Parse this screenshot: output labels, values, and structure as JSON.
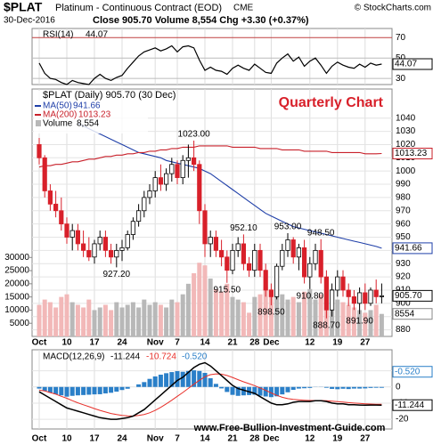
{
  "chart_data": [
    {
      "type": "line",
      "series": [
        {
          "name": "RSI(14)",
          "color": "#000000",
          "values": [
            45,
            35,
            30,
            29,
            26,
            24,
            28,
            26,
            25,
            24,
            30,
            34,
            30,
            28,
            31,
            33,
            40,
            46,
            52,
            56,
            58,
            60,
            57,
            59,
            62,
            56,
            61,
            62,
            60,
            48,
            38,
            41,
            38,
            37,
            34,
            40,
            43,
            40,
            38,
            44,
            40,
            36,
            35,
            45,
            50,
            54,
            47,
            51,
            42,
            47,
            50,
            43,
            35,
            42,
            46,
            43,
            41,
            40,
            44,
            41,
            45,
            43,
            44.07
          ]
        }
      ],
      "ylim": [
        24,
        79
      ],
      "yticks": [
        30,
        50,
        70
      ],
      "grid": true
    },
    {
      "type": "candlestick",
      "title": "$PLAT",
      "subtitle": "Platinum - Continuous Contract (EOD)",
      "exchange": "CME",
      "source": "© StockCharts.com",
      "date": "30-Dec-2016",
      "quote": "Close 905.70 Volume 8,554 Chg +3.30 (+0.37%)",
      "annotation": "Quarterly Chart",
      "watermark": "www.Free-Bullion-Investment-Guide.com",
      "categories": [
        "Oct",
        null,
        null,
        null,
        null,
        "10",
        null,
        null,
        null,
        null,
        "17",
        null,
        null,
        null,
        null,
        "24",
        null,
        null,
        null,
        null,
        null,
        "Nov",
        null,
        null,
        null,
        "7",
        null,
        null,
        null,
        null,
        "14",
        null,
        null,
        null,
        null,
        "21",
        null,
        null,
        null,
        "28",
        null,
        null,
        "Dec",
        null,
        null,
        null,
        null,
        null,
        null,
        "12",
        null,
        null,
        null,
        null,
        "19",
        null,
        null,
        null,
        null,
        "27",
        null,
        null,
        null
      ],
      "price": {
        "name": "$PLAT (Daily) 905.70 (30 Dec)",
        "last_label": "905.70",
        "up_color": "#000000",
        "down_color": "#d8202a",
        "ohlc": [
          [
            1020,
            1025,
            1005,
            1010
          ],
          [
            1010,
            1012,
            980,
            985
          ],
          [
            985,
            990,
            970,
            975
          ],
          [
            975,
            985,
            965,
            970
          ],
          [
            970,
            980,
            955,
            960
          ],
          [
            960,
            965,
            945,
            950
          ],
          [
            950,
            960,
            940,
            955
          ],
          [
            955,
            960,
            940,
            945
          ],
          [
            945,
            955,
            935,
            940
          ],
          [
            940,
            950,
            932,
            935
          ],
          [
            935,
            948,
            930,
            945
          ],
          [
            945,
            955,
            940,
            950
          ],
          [
            950,
            955,
            935,
            940
          ],
          [
            940,
            945,
            930,
            935
          ],
          [
            935,
            945,
            927.2,
            940
          ],
          [
            940,
            948,
            932,
            942
          ],
          [
            942,
            955,
            940,
            952
          ],
          [
            952,
            965,
            948,
            962
          ],
          [
            962,
            975,
            958,
            970
          ],
          [
            970,
            985,
            965,
            980
          ],
          [
            980,
            990,
            975,
            985
          ],
          [
            985,
            1000,
            980,
            995
          ],
          [
            995,
            1005,
            985,
            990
          ],
          [
            990,
            1002,
            985,
            998
          ],
          [
            998,
            1010,
            992,
            1005
          ],
          [
            1005,
            1008,
            990,
            995
          ],
          [
            995,
            1012,
            990,
            1008
          ],
          [
            1008,
            1020,
            995,
            1010
          ],
          [
            1010,
            1023,
            1000,
            1005
          ],
          [
            1005,
            1008,
            960,
            970
          ],
          [
            970,
            975,
            935,
            945
          ],
          [
            945,
            955,
            935,
            950
          ],
          [
            950,
            955,
            935,
            940
          ],
          [
            940,
            948,
            928,
            935
          ],
          [
            935,
            940,
            915.5,
            925
          ],
          [
            925,
            945,
            922,
            940
          ],
          [
            940,
            950,
            935,
            945
          ],
          [
            945,
            952.1,
            925,
            930
          ],
          [
            930,
            935,
            920,
            925
          ],
          [
            925,
            945,
            920,
            940
          ],
          [
            940,
            945,
            920,
            925
          ],
          [
            925,
            930,
            905,
            910
          ],
          [
            910,
            915,
            898.5,
            905
          ],
          [
            905,
            930,
            903,
            928
          ],
          [
            928,
            945,
            925,
            940
          ],
          [
            940,
            953,
            935,
            948
          ],
          [
            948,
            950,
            930,
            935
          ],
          [
            935,
            945,
            925,
            942
          ],
          [
            942,
            948,
            915,
            920
          ],
          [
            920,
            935,
            910.8,
            930
          ],
          [
            930,
            945,
            925,
            940
          ],
          [
            940,
            948.5,
            915,
            920
          ],
          [
            920,
            925,
            888.7,
            895
          ],
          [
            895,
            915,
            890,
            910
          ],
          [
            910,
            925,
            905,
            920
          ],
          [
            920,
            925,
            905,
            910
          ],
          [
            910,
            915,
            898,
            905
          ],
          [
            905,
            910,
            895,
            900
          ],
          [
            900,
            912,
            891.9,
            908
          ],
          [
            908,
            915,
            895,
            900
          ],
          [
            900,
            912,
            898,
            910
          ],
          [
            910,
            918,
            900,
            905
          ],
          [
            905,
            915,
            900,
            905.7
          ]
        ]
      },
      "series": [
        {
          "name": "MA(50)",
          "color": "#1f3fa8",
          "values": [
            null,
            null,
            null,
            null,
            null,
            null,
            null,
            1036,
            1034,
            1032,
            1030,
            1028,
            1026,
            1024,
            1022,
            1020,
            1018,
            1016,
            1014,
            1013,
            1012,
            1011,
            1010,
            1008,
            1007,
            1006,
            1005,
            1004,
            1003,
            1002,
            1000,
            998,
            995,
            992,
            989,
            986,
            983,
            980,
            977,
            974,
            971,
            968,
            966,
            964,
            962,
            960,
            958,
            957,
            956,
            955,
            954,
            953,
            952,
            951,
            950,
            949,
            948,
            947,
            946,
            945,
            944,
            943,
            941.66
          ]
        },
        {
          "name": "MA(200)",
          "color": "#c8202a",
          "values": [
            1003,
            1004,
            1004,
            1005,
            1005,
            1006,
            1007,
            1007,
            1008,
            1009,
            1009,
            1010,
            1011,
            1011,
            1012,
            1012,
            1013,
            1013,
            1014,
            1014,
            1015,
            1015,
            1016,
            1016,
            1017,
            1017,
            1018,
            1018,
            1018,
            1019,
            1019,
            1019,
            1019,
            1019,
            1019,
            1018,
            1018,
            1018,
            1018,
            1018,
            1017,
            1017,
            1017,
            1017,
            1016,
            1016,
            1016,
            1016,
            1015,
            1015,
            1015,
            1015,
            1015,
            1014,
            1014,
            1014,
            1014,
            1014,
            1014,
            1013,
            1013,
            1013,
            1013.23
          ]
        }
      ],
      "volume": {
        "name": "Volume",
        "value_label": "8,554",
        "up_color": "#b8b8b8",
        "down_color": "#f2b8b8",
        "values": [
          12000,
          14000,
          13000,
          11000,
          15000,
          16000,
          13000,
          12000,
          11000,
          14000,
          10000,
          11000,
          12000,
          10000,
          13000,
          11000,
          12000,
          13000,
          11000,
          14000,
          12000,
          13000,
          12000,
          11000,
          14000,
          13000,
          16000,
          20000,
          24000,
          28000,
          27000,
          22000,
          18000,
          17000,
          20000,
          15000,
          14000,
          13000,
          9000,
          15000,
          16000,
          19000,
          18000,
          15000,
          16000,
          14000,
          15000,
          13000,
          17000,
          18000,
          14000,
          16000,
          22000,
          18000,
          14000,
          13000,
          12000,
          11000,
          10000,
          9000,
          10000,
          12000,
          8554
        ]
      },
      "annotations": [
        {
          "index": 28,
          "value": 1023,
          "label": "1023.00"
        },
        {
          "index": 37,
          "value": 952.1,
          "label": "952.10"
        },
        {
          "index": 45,
          "value": 953,
          "label": "953.00"
        },
        {
          "index": 51,
          "value": 948.5,
          "label": "948.50"
        },
        {
          "index": 14,
          "value": 927.2,
          "label": "927.20"
        },
        {
          "index": 34,
          "value": 915.5,
          "label": "915.50"
        },
        {
          "index": 42,
          "value": 898.5,
          "label": "898.50"
        },
        {
          "index": 49,
          "value": 910.8,
          "label": "910.80"
        },
        {
          "index": 52,
          "value": 888.7,
          "label": "888.70"
        },
        {
          "index": 58,
          "value": 891.9,
          "label": "891.90"
        }
      ],
      "ylim": [
        875,
        1062
      ],
      "yticks": [
        880,
        890,
        900,
        910,
        920,
        930,
        940,
        950,
        960,
        970,
        980,
        990,
        1000,
        1010,
        1020,
        1030,
        1040
      ],
      "y2lim": [
        0,
        94000
      ],
      "y2ticks": [
        5000,
        10000,
        15000,
        20000,
        25000,
        30000
      ],
      "grid": true
    },
    {
      "type": "macd",
      "title": "MACD(12,26,9)",
      "series": [
        {
          "name": "MACD",
          "color": "#000000",
          "values": [
            -3,
            -5,
            -7,
            -9,
            -11,
            -13,
            -14,
            -15,
            -16,
            -17,
            -18,
            -19,
            -19.5,
            -20,
            -20,
            -19.5,
            -19,
            -18,
            -16,
            -14,
            -11,
            -8,
            -5,
            -2,
            1,
            4,
            6,
            9,
            12,
            14,
            15,
            13,
            10,
            7,
            4,
            1,
            -1,
            -2,
            -3,
            -4,
            -6,
            -8,
            -10,
            -11,
            -11,
            -10.5,
            -9.5,
            -9,
            -9,
            -9,
            -8.5,
            -8.5,
            -9,
            -10,
            -10.5,
            -10.5,
            -11,
            -11,
            -11.2,
            -11.3,
            -11.2,
            -11.2,
            -11.244
          ]
        },
        {
          "name": "Signal",
          "color": "#e8302a",
          "values": [
            -2,
            -2.5,
            -3.5,
            -4.5,
            -5.8,
            -7,
            -8.5,
            -9.8,
            -11,
            -12.2,
            -13.4,
            -14.5,
            -15.5,
            -16.4,
            -17.1,
            -17.6,
            -17.9,
            -18,
            -17.6,
            -17,
            -16,
            -14.5,
            -12.6,
            -10.5,
            -8.2,
            -5.8,
            -3.4,
            -0.9,
            1.7,
            4.1,
            6.3,
            7.6,
            8.1,
            7.9,
            7.1,
            5.9,
            4.5,
            3.2,
            2,
            0.8,
            -0.6,
            -2.1,
            -3.7,
            -5.2,
            -6.4,
            -7.2,
            -7.7,
            -8,
            -8.2,
            -8.4,
            -8.4,
            -8.4,
            -8.5,
            -8.8,
            -9.1,
            -9.4,
            -9.7,
            -10,
            -10.2,
            -10.4,
            -10.6,
            -10.7,
            -10.724
          ]
        },
        {
          "name": "Histogram",
          "color": "#2a7fc8",
          "last_label": "-0.520",
          "values": [
            -1,
            -2.5,
            -3.5,
            -4.5,
            -5.2,
            -6,
            -5.5,
            -5.2,
            -5,
            -4.8,
            -4.6,
            -4.5,
            -4,
            -3.6,
            -2.9,
            -1.9,
            -1.1,
            0,
            1.6,
            3,
            5,
            6.5,
            7.6,
            8.5,
            9.2,
            9.8,
            9.4,
            9.9,
            10.3,
            9.9,
            8.7,
            5.4,
            1.9,
            -0.9,
            -3.1,
            -4.9,
            -5.5,
            -5.2,
            -5,
            -4.8,
            -5.4,
            -5.9,
            -6.3,
            -5.8,
            -4.6,
            -3.3,
            -1.8,
            -1,
            -0.8,
            -0.6,
            -0.1,
            -0.1,
            -0.5,
            -1.2,
            -1.4,
            -1.1,
            -1.3,
            -1,
            -1,
            -0.9,
            -0.6,
            -0.5,
            -0.52
          ]
        }
      ],
      "ylim": [
        -26,
        23
      ],
      "yticks": [
        -20,
        -10,
        0,
        10
      ],
      "grid": true
    }
  ]
}
